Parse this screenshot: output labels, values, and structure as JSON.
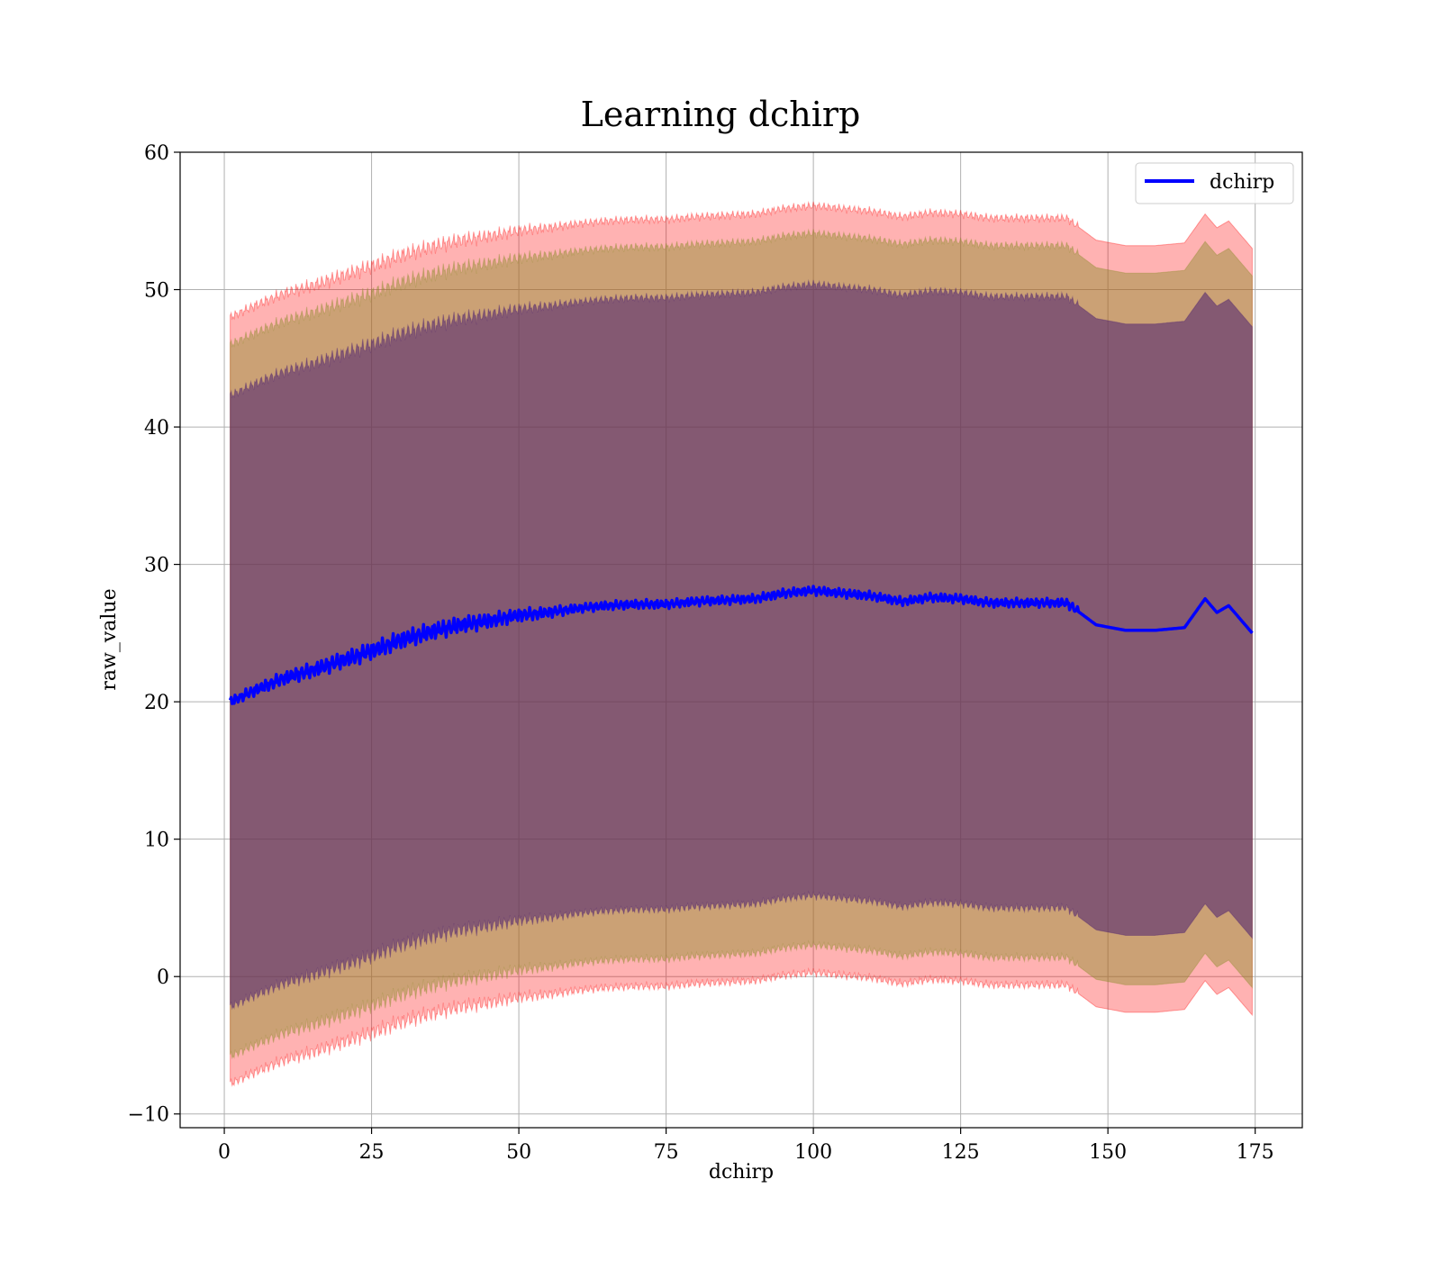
{
  "chart_data": {
    "type": "line",
    "title": "Learning dchirp",
    "xlabel": "dchirp",
    "ylabel": "raw_value",
    "xlim": [
      -7.5,
      183
    ],
    "ylim": [
      -11,
      60
    ],
    "xticks": [
      0,
      25,
      50,
      75,
      100,
      125,
      150,
      175
    ],
    "yticks": [
      -10,
      0,
      10,
      20,
      30,
      40,
      50,
      60
    ],
    "grid": true,
    "legend": {
      "placement": "top-right",
      "entries": [
        "dchirp"
      ]
    },
    "colors": {
      "line": "#0000ff",
      "band_outer": "#ff0000",
      "band_middle": "#8b8b2a",
      "band_inner": "#4b1f6f"
    },
    "series": [
      {
        "name": "dchirp",
        "x": [
          1,
          5,
          10,
          15,
          20,
          25,
          30,
          35,
          40,
          45,
          50,
          55,
          60,
          65,
          70,
          75,
          80,
          85,
          90,
          95,
          100,
          105,
          110,
          115,
          120,
          125,
          130,
          135,
          140,
          143,
          148,
          153,
          158,
          163,
          166.5,
          168.5,
          170.5,
          174.5
        ],
        "y": [
          20,
          20.8,
          21.7,
          22.3,
          23,
          23.7,
          24.5,
          25.1,
          25.6,
          25.9,
          26.3,
          26.5,
          26.8,
          27,
          27.1,
          27.1,
          27.3,
          27.4,
          27.5,
          27.9,
          28.1,
          27.9,
          27.7,
          27.3,
          27.6,
          27.5,
          27.2,
          27.2,
          27.2,
          27.2,
          25.6,
          25.2,
          25.2,
          25.4,
          27.5,
          26.5,
          27,
          25
        ],
        "band_outer": {
          "upper_offset": 28,
          "lower_offset": 27.8
        },
        "band_middle": {
          "upper_offset": 26,
          "lower_offset": 25.8
        },
        "band_inner": {
          "upper_offset": 22.3,
          "lower_offset": 22.2
        }
      }
    ]
  }
}
